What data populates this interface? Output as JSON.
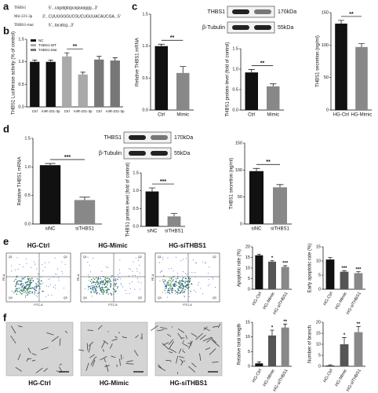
{
  "panels": [
    "a",
    "b",
    "c",
    "d",
    "e",
    "f"
  ],
  "sequences": [
    {
      "name": "THBS1",
      "seq": "5'...cagatgtagcagaaaggg...3'"
    },
    {
      "name": "Mir-221-3p",
      "seq": "3'...CUUUGGGUCGUCUGUUACAUCGA...5'"
    },
    {
      "name": "THBS1-mut",
      "seq": "5'...tacatcg...3'"
    }
  ],
  "blots": [
    {
      "bands": [
        {
          "name": "THBS1",
          "size": "170kDa"
        },
        {
          "name": "β-Tubulin",
          "size": "55kDa"
        }
      ]
    },
    {
      "bands": [
        {
          "name": "THBS1",
          "size": "170kDa"
        },
        {
          "name": "β-Tubulin",
          "size": "55kDa"
        }
      ]
    }
  ],
  "flow": {
    "samples": [
      "HG-Ctrl",
      "HG-Mimic",
      "HG-siTHBS1"
    ],
    "xlabel": "FITC-A",
    "ylabel": "PE-A",
    "quadrants": [
      "Q1",
      "Q2",
      "Q3",
      "Q4"
    ]
  },
  "tube": {
    "samples": [
      "HG-Ctrl",
      "HG-Mimic",
      "HG-siTHBS1"
    ]
  },
  "chart_data": [
    {
      "type": "bar",
      "ylabel": "THBS1 Luciferase activity (% of control)",
      "categories": [
        "Ctrl",
        "miR-221-3p",
        "Ctrl",
        "miR-221-3p",
        "Ctrl",
        "miR-221-3p"
      ],
      "values": [
        1.0,
        1.0,
        1.12,
        0.72,
        1.05,
        1.03
      ],
      "errors": [
        0.04,
        0.04,
        0.08,
        0.05,
        0.07,
        0.06
      ],
      "colors": [
        "#111111",
        "#111111",
        "#aaaaaa",
        "#aaaaaa",
        "#777777",
        "#777777"
      ],
      "legend": [
        {
          "name": "NC",
          "color": "#111111"
        },
        {
          "name": "THBS1-WT",
          "color": "#aaaaaa"
        },
        {
          "name": "THBS1-Mut",
          "color": "#777777"
        }
      ],
      "significance": [
        null,
        null,
        null,
        "**",
        null,
        null
      ],
      "ylim": [
        0,
        1.5
      ],
      "yticks": [
        {
          "value": 0,
          "label": "0.0"
        },
        0.5,
        {
          "value": 1,
          "label": "1.0"
        },
        1.5
      ]
    },
    {
      "type": "bar",
      "ylabel": "Relative THBS1 mRNA",
      "categories": [
        "Ctrl",
        "Mimic"
      ],
      "values": [
        1.0,
        0.58
      ],
      "errors": [
        0.03,
        0.1
      ],
      "colors": [
        "#111111",
        "#888888"
      ],
      "significance": [
        null,
        "**"
      ],
      "ylim": [
        0,
        1.5
      ],
      "yticks": [
        {
          "value": 0,
          "label": "0.0"
        },
        0.5,
        {
          "value": 1,
          "label": "1.0"
        },
        1.5
      ]
    },
    {
      "type": "bar",
      "ylabel": "THBS1 protein level (fold of control)",
      "categories": [
        "Ctrl",
        "Mimic"
      ],
      "values": [
        0.92,
        0.58
      ],
      "errors": [
        0.07,
        0.06
      ],
      "colors": [
        "#111111",
        "#888888"
      ],
      "significance": [
        null,
        "**"
      ],
      "ylim": [
        0,
        1.5
      ],
      "yticks": [
        {
          "value": 0,
          "label": "0.0"
        },
        0.5,
        {
          "value": 1,
          "label": "1.0"
        },
        1.5
      ]
    },
    {
      "type": "bar",
      "ylabel": "THBS1 secretion (ng/ml)",
      "categories": [
        "HG-Ctrl",
        "HG-Mimic"
      ],
      "values": [
        133,
        97
      ],
      "errors": [
        5,
        5
      ],
      "colors": [
        "#111111",
        "#888888"
      ],
      "significance": [
        null,
        "**"
      ],
      "ylim": [
        0,
        150
      ],
      "yticks": [
        0,
        50,
        100,
        150
      ]
    },
    {
      "type": "bar",
      "ylabel": "Relative THBS1 mRNA",
      "categories": [
        "siNC",
        "siTHBS1"
      ],
      "values": [
        1.03,
        0.42
      ],
      "errors": [
        0.03,
        0.05
      ],
      "colors": [
        "#111111",
        "#888888"
      ],
      "significance": [
        null,
        "***"
      ],
      "ylim": [
        0,
        1.5
      ],
      "yticks": [
        {
          "value": 0,
          "label": "0.0"
        },
        0.5,
        {
          "value": 1,
          "label": "1.0"
        },
        1.5
      ]
    },
    {
      "type": "bar",
      "ylabel": "THBS1 protein level (fold of control)",
      "categories": [
        "siNC",
        "siTHBS1"
      ],
      "values": [
        0.98,
        0.28
      ],
      "errors": [
        0.1,
        0.08
      ],
      "colors": [
        "#111111",
        "#888888"
      ],
      "significance": [
        null,
        "***"
      ],
      "ylim": [
        0,
        1.5
      ],
      "yticks": [
        {
          "value": 0,
          "label": "0.0"
        },
        0.5,
        {
          "value": 1,
          "label": "1.0"
        },
        1.5
      ]
    },
    {
      "type": "bar",
      "ylabel": "THBS1 secretion (ng/ml)",
      "categories": [
        "siNC",
        "siTHBS1"
      ],
      "values": [
        98,
        68
      ],
      "errors": [
        5,
        5
      ],
      "colors": [
        "#111111",
        "#888888"
      ],
      "significance": [
        null,
        "**"
      ],
      "ylim": [
        0,
        150
      ],
      "yticks": [
        0,
        50,
        100,
        150
      ]
    },
    {
      "type": "bar",
      "ylabel": "Apoptotic rate (%)",
      "categories": [
        "HG-Ctrl",
        "HG-Mimic",
        "HG-siTHBS1"
      ],
      "values": [
        16,
        13,
        10.5
      ],
      "errors": [
        0.5,
        0.5,
        0.6
      ],
      "colors": [
        "#111111",
        "#555555",
        "#888888"
      ],
      "significance": [
        null,
        "*",
        "***"
      ],
      "ylim": [
        0,
        20
      ],
      "yticks": [
        0,
        5,
        10,
        15,
        20
      ]
    },
    {
      "type": "bar",
      "ylabel": "Early apoptotic rate (%)",
      "categories": [
        "HG-Ctrl",
        "HG-Mimic",
        "HG-siTHBS1"
      ],
      "values": [
        10.5,
        6.2,
        5.7
      ],
      "errors": [
        0.7,
        0.3,
        0.5
      ],
      "colors": [
        "#111111",
        "#555555",
        "#888888"
      ],
      "significance": [
        null,
        "***",
        "***"
      ],
      "ylim": [
        0,
        15
      ],
      "yticks": [
        0,
        5,
        10,
        15
      ]
    },
    {
      "type": "bar",
      "ylabel": "Relative total length",
      "categories": [
        "HG-Ctrl",
        "HG-Mimic",
        "HG-siTHBS1"
      ],
      "values": [
        1,
        10.5,
        13.2
      ],
      "errors": [
        0.5,
        1.8,
        1.2
      ],
      "colors": [
        "#111111",
        "#555555",
        "#888888"
      ],
      "significance": [
        null,
        "*",
        "**"
      ],
      "ylim": [
        0,
        15
      ],
      "yticks": [
        0,
        5,
        10,
        15
      ]
    },
    {
      "type": "bar",
      "ylabel": "Number of branch",
      "categories": [
        "HG-Ctrl",
        "HG-Mimic",
        "HG-siTHBS1"
      ],
      "values": [
        0.3,
        10,
        15.5
      ],
      "errors": [
        0.4,
        3,
        2.5
      ],
      "colors": [
        "#111111",
        "#555555",
        "#888888"
      ],
      "significance": [
        null,
        "*",
        "**"
      ],
      "ylim": [
        0,
        20
      ],
      "yticks": [
        0,
        5,
        10,
        15,
        20
      ]
    }
  ]
}
